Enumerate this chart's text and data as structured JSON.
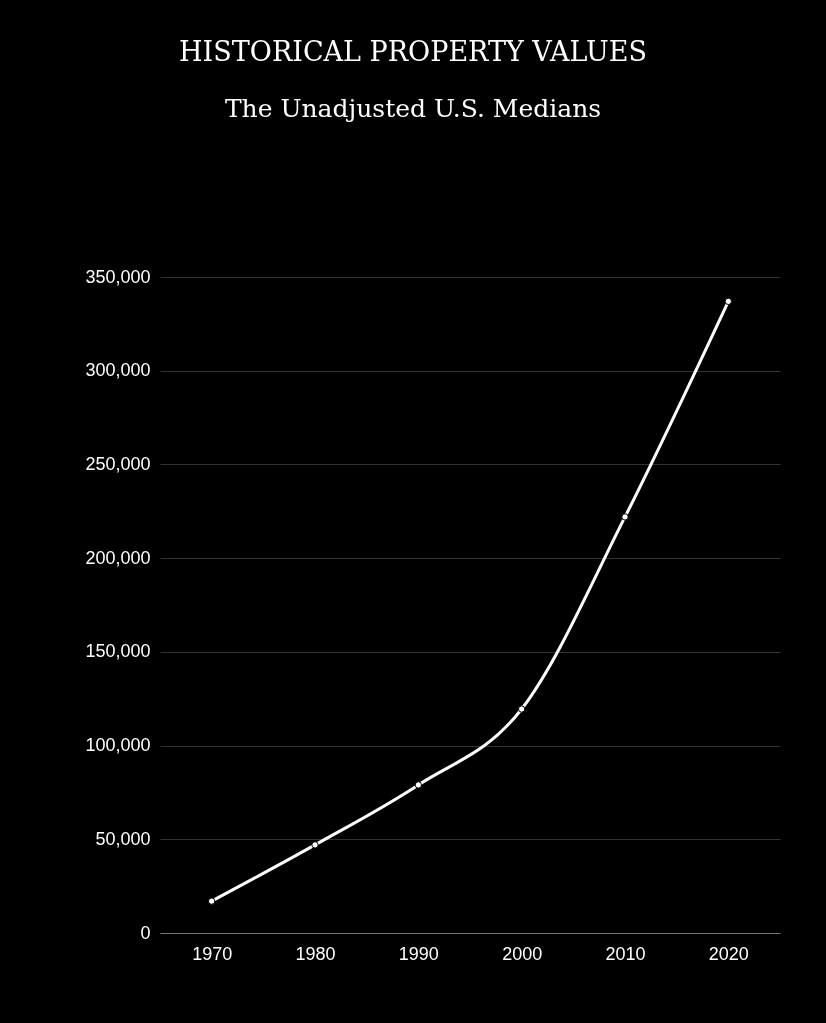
{
  "chart_data": {
    "type": "line",
    "title": "HISTORICAL PROPERTY VALUES",
    "subtitle": "The Unadjusted U.S. Medians",
    "categories": [
      "1970",
      "1980",
      "1990",
      "2000",
      "2010",
      "2020"
    ],
    "series": [
      {
        "color": "#ffffff",
        "values": [
          17000,
          47000,
          79000,
          119500,
          222000,
          337000
        ]
      }
    ],
    "ylim": [
      0,
      350000
    ],
    "yticks": [
      0,
      {
        "value": 50000,
        "label": "50,000"
      },
      {
        "value": 100000,
        "label": "100,000"
      },
      {
        "value": 150000,
        "label": "150,000"
      },
      {
        "value": 200000,
        "label": "200,000"
      },
      {
        "value": 250000,
        "label": "250,000"
      },
      {
        "value": 300000,
        "label": "300,000"
      },
      {
        "value": 350000,
        "label": "350,000"
      }
    ],
    "grid": "y",
    "marker": "circle",
    "line_style": "solid"
  }
}
